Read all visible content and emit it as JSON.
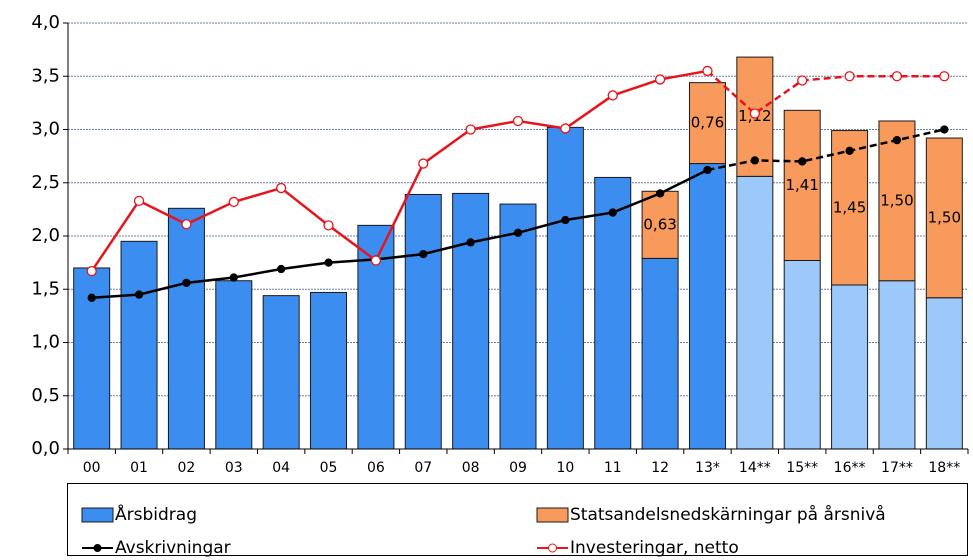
{
  "chart_data": {
    "type": "bar",
    "stacked": true,
    "categories": [
      "00",
      "01",
      "02",
      "03",
      "04",
      "05",
      "06",
      "07",
      "08",
      "09",
      "10",
      "11",
      "12",
      "13*",
      "14**",
      "15**",
      "16**",
      "17**",
      "18**"
    ],
    "series": [
      {
        "name": "Årsbidrag",
        "type": "bar",
        "color": "#3b8ef0",
        "colors": [
          "#3b8ef0",
          "#3b8ef0",
          "#3b8ef0",
          "#3b8ef0",
          "#3b8ef0",
          "#3b8ef0",
          "#3b8ef0",
          "#3b8ef0",
          "#3b8ef0",
          "#3b8ef0",
          "#3b8ef0",
          "#3b8ef0",
          "#3b8ef0",
          "#3b8ef0",
          "#9cc8fa",
          "#9cc8fa",
          "#9cc8fa",
          "#9cc8fa",
          "#9cc8fa"
        ],
        "values": [
          1.7,
          1.95,
          2.26,
          1.58,
          1.44,
          1.47,
          2.1,
          2.39,
          2.4,
          2.3,
          3.02,
          2.55,
          1.79,
          2.68,
          2.56,
          1.77,
          1.54,
          1.58,
          1.42
        ]
      },
      {
        "name": "Statsandelsnedskärningar på årsnivå",
        "type": "bar",
        "color": "#f79a5c",
        "values": [
          null,
          null,
          null,
          null,
          null,
          null,
          null,
          null,
          null,
          null,
          null,
          null,
          0.63,
          0.76,
          1.12,
          1.41,
          1.45,
          1.5,
          1.5
        ],
        "value_labels": [
          null,
          null,
          null,
          null,
          null,
          null,
          null,
          null,
          null,
          null,
          null,
          null,
          "0,63",
          "0,76",
          "1,12",
          "1,41",
          "1,45",
          "1,50",
          "1,50"
        ]
      },
      {
        "name": "Avskrivningar",
        "type": "line",
        "color": "#000000",
        "marker": "filled",
        "dash_from": 13,
        "values": [
          1.42,
          1.45,
          1.56,
          1.61,
          1.69,
          1.75,
          1.78,
          1.83,
          1.94,
          2.03,
          2.15,
          2.22,
          2.4,
          2.62,
          2.71,
          2.7,
          2.8,
          2.9,
          3.0
        ]
      },
      {
        "name": "Investeringar, netto",
        "type": "line",
        "color": "#e8141c",
        "marker": "open",
        "dash_from": 13,
        "values": [
          1.67,
          2.33,
          2.11,
          2.32,
          2.45,
          2.1,
          1.77,
          2.68,
          3.0,
          3.08,
          3.01,
          3.32,
          3.47,
          3.55,
          3.15,
          3.46,
          3.5,
          3.5,
          3.5
        ]
      }
    ],
    "ylim": [
      0,
      4
    ],
    "yticks": [
      {
        "value": 0,
        "label": "0,0"
      },
      {
        "value": 0.5,
        "label": "0,5"
      },
      {
        "value": 1,
        "label": "1,0"
      },
      {
        "value": 1.5,
        "label": "1,5"
      },
      {
        "value": 2,
        "label": "2,0"
      },
      {
        "value": 2.5,
        "label": "2,5"
      },
      {
        "value": 3,
        "label": "3,0"
      },
      {
        "value": 3.5,
        "label": "3,5"
      },
      {
        "value": 4,
        "label": "4,0"
      }
    ],
    "grid": true,
    "legend": "bottom"
  }
}
